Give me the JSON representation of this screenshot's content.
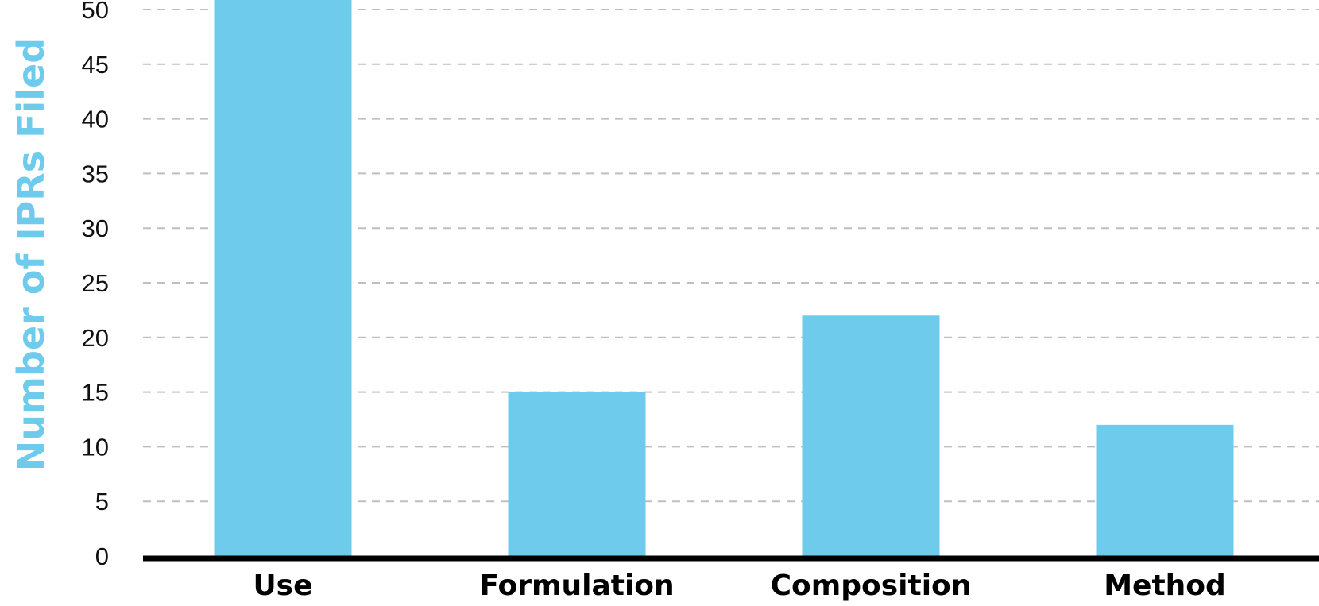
{
  "chart_data": {
    "type": "bar",
    "categories": [
      "Use",
      "Formulation",
      "Composition",
      "Method"
    ],
    "values": [
      52,
      15,
      22,
      12
    ],
    "xlabel": "",
    "ylabel": "Number of IPRs Filed",
    "ylim": [
      0,
      50
    ],
    "yticks": [
      "0",
      "5",
      "10",
      "15",
      "20",
      "25",
      "30",
      "35",
      "40",
      "45",
      "50"
    ],
    "grid": "horizontal dashed",
    "bar_color": "#6ECBEC",
    "ylabel_color": "#6ECBEC",
    "gridline_color": "#BFBFBF",
    "axis_color": "#000000"
  }
}
